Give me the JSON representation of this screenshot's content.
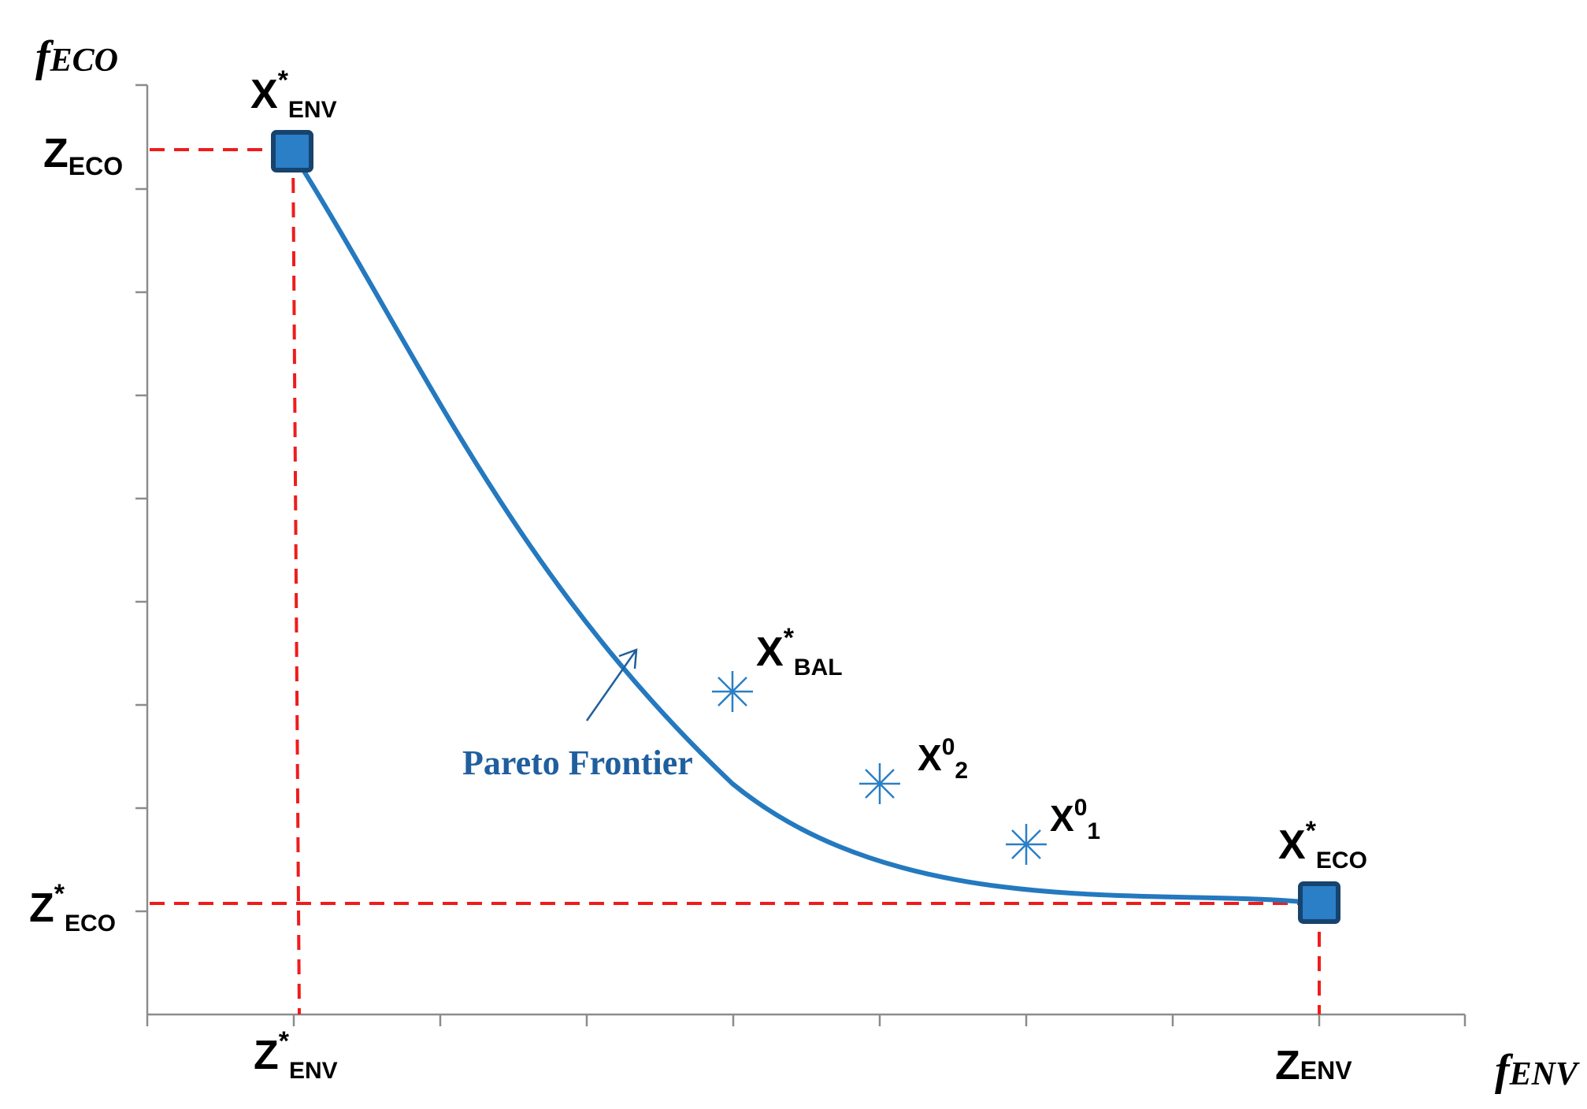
{
  "axes": {
    "y": {
      "main": "f",
      "sub": "ECO"
    },
    "x": {
      "main": "f",
      "sub": "ENV"
    }
  },
  "labels": {
    "x_star_env": {
      "main": "X",
      "sup": "*",
      "sub": "ENV"
    },
    "x_star_eco": {
      "main": "X",
      "sup": "*",
      "sub": "ECO"
    },
    "x_star_bal": {
      "main": "X",
      "sup": "*",
      "sub": "BAL"
    },
    "x0_2": {
      "main": "X",
      "sup": "0",
      "sub": "2"
    },
    "x0_1": {
      "main": "X",
      "sup": "0",
      "sub": "1"
    },
    "z_eco": {
      "main": "Z",
      "sub": "ECO"
    },
    "z_star_eco": {
      "main": "Z",
      "sup": "*",
      "sub": "ECO"
    },
    "z_star_env": {
      "main": "Z",
      "sup": "*",
      "sub": "ENV"
    },
    "z_env": {
      "main": "Z",
      "sub": "ENV"
    }
  },
  "frontier_label": "Pareto Frontier",
  "colors": {
    "frontier": "#2479bf",
    "guides": "#ee1c1c",
    "axes": "#8c8c8c",
    "marker_fill": "#2a7fc6",
    "marker_border": "#17436e",
    "frontier_label": "#1f5f9e"
  }
}
